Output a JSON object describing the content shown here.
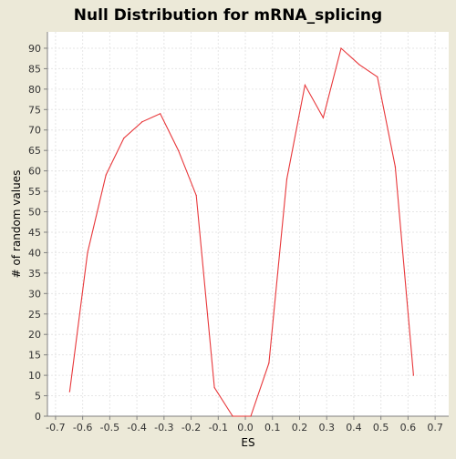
{
  "chart_data": {
    "type": "line",
    "title": "Null Distribution for mRNA_splicing",
    "xlabel": "ES",
    "ylabel": "# of random values",
    "xlim": [
      -0.73,
      0.75
    ],
    "ylim": [
      0,
      94
    ],
    "x_ticks": [
      -0.7,
      -0.6,
      -0.5,
      -0.4,
      -0.3,
      -0.2,
      -0.1,
      0.0,
      0.1,
      0.2,
      0.3,
      0.4,
      0.5,
      0.6,
      0.7
    ],
    "x_tick_labels": [
      "-0.7",
      "-0.6",
      "-0.5",
      "-0.4",
      "-0.3",
      "-0.2",
      "-0.1",
      "0.0",
      "0.1",
      "0.2",
      "0.3",
      "0.4",
      "0.5",
      "0.6",
      "0.7"
    ],
    "y_ticks": [
      0,
      5,
      10,
      15,
      20,
      25,
      30,
      35,
      40,
      45,
      50,
      55,
      60,
      65,
      70,
      75,
      80,
      85,
      90
    ],
    "y_tick_labels": [
      "0",
      "5",
      "10",
      "15",
      "20",
      "25",
      "30",
      "35",
      "40",
      "45",
      "50",
      "55",
      "60",
      "65",
      "70",
      "75",
      "80",
      "85",
      "90"
    ],
    "grid": true,
    "series": [
      {
        "color": "#e8373a",
        "x": [
          -0.648,
          -0.582,
          -0.514,
          -0.448,
          -0.381,
          -0.314,
          -0.247,
          -0.181,
          -0.114,
          -0.047,
          0.02,
          0.087,
          0.153,
          0.22,
          0.287,
          0.353,
          0.42,
          0.487,
          0.553,
          0.62
        ],
        "y": [
          6,
          40,
          59,
          68,
          72,
          74,
          65,
          54,
          7,
          0,
          0,
          13,
          58,
          81,
          73,
          90,
          86,
          83,
          61,
          10
        ]
      }
    ]
  },
  "colors": {
    "background": "#ece9d8",
    "plot_area": "#ffffff",
    "gridline": "#e6e6e6",
    "series_line": "#e8373a"
  }
}
